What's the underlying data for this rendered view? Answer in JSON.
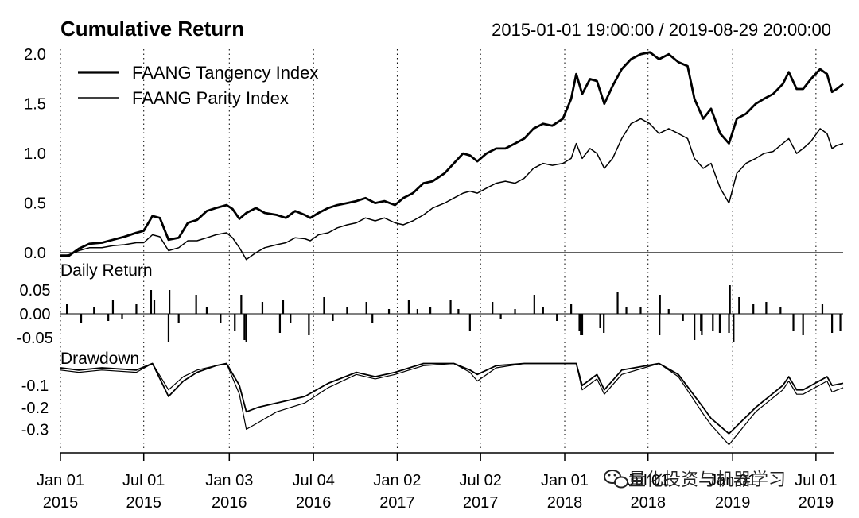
{
  "chart_data": {
    "type": "line",
    "title": "Cumulative Return",
    "date_range": "2015-01-01 19:00:00 / 2019-08-29 20:00:00",
    "x_tick_labels": [
      {
        "top": "Jan 01",
        "bottom": "2015",
        "date": "2015-01-01"
      },
      {
        "top": "Jul 01",
        "bottom": "2015",
        "date": "2015-07-01"
      },
      {
        "top": "Jan 03",
        "bottom": "2016",
        "date": "2016-01-03"
      },
      {
        "top": "Jul 04",
        "bottom": "2016",
        "date": "2016-07-04"
      },
      {
        "top": "Jan 02",
        "bottom": "2017",
        "date": "2017-01-02"
      },
      {
        "top": "Jul 02",
        "bottom": "2017",
        "date": "2017-07-02"
      },
      {
        "top": "Jan 01",
        "bottom": "2018",
        "date": "2018-01-01"
      },
      {
        "top": "Jul 01",
        "bottom": "2018",
        "date": "2018-07-01"
      },
      {
        "top": "Jan 01",
        "bottom": "2019",
        "date": "2019-01-01"
      },
      {
        "top": "Jul 01",
        "bottom": "2019",
        "date": "2019-07-01"
      }
    ],
    "x_range": [
      "2015-01-01",
      "2019-08-29"
    ],
    "legend_position": "top-left",
    "grid": "dotted vertical",
    "panels": {
      "cumulative": {
        "label": "Cumulative Return",
        "ylim": [
          0,
          2.05
        ],
        "y_ticks": [
          "0.0",
          "0.5",
          "1.0",
          "1.5",
          "2.0"
        ],
        "y_tick_values": [
          0,
          0.5,
          1.0,
          1.5,
          2.0
        ]
      },
      "daily": {
        "label": "Daily Return",
        "ylim": [
          -0.075,
          0.075
        ],
        "y_ticks": [
          "0.05",
          "0.00",
          "-0.05"
        ],
        "y_tick_values": [
          0.05,
          0,
          -0.05
        ]
      },
      "drawdown": {
        "label": "Drawdown",
        "ylim": [
          -0.4,
          0.02
        ],
        "y_ticks": [
          "-0.1",
          "-0.2",
          "-0.3"
        ],
        "y_tick_values": [
          -0.1,
          -0.2,
          -0.3
        ]
      }
    },
    "series": [
      {
        "name": "FAANG Tangency Index",
        "line_width": "thick",
        "cumulative_return": {
          "x": [
            "2015-01-01",
            "2015-01-20",
            "2015-02-10",
            "2015-03-05",
            "2015-04-01",
            "2015-04-25",
            "2015-05-20",
            "2015-06-15",
            "2015-07-01",
            "2015-07-20",
            "2015-08-05",
            "2015-08-24",
            "2015-09-15",
            "2015-10-05",
            "2015-10-25",
            "2015-11-15",
            "2015-12-05",
            "2015-12-28",
            "2016-01-10",
            "2016-01-25",
            "2016-02-09",
            "2016-03-01",
            "2016-03-20",
            "2016-04-15",
            "2016-05-05",
            "2016-05-25",
            "2016-06-15",
            "2016-06-27",
            "2016-07-15",
            "2016-08-05",
            "2016-08-25",
            "2016-09-15",
            "2016-10-05",
            "2016-10-25",
            "2016-11-15",
            "2016-12-05",
            "2016-12-28",
            "2017-01-15",
            "2017-02-05",
            "2017-02-28",
            "2017-03-20",
            "2017-04-15",
            "2017-05-05",
            "2017-05-25",
            "2017-06-09",
            "2017-06-25",
            "2017-07-15",
            "2017-08-05",
            "2017-08-25",
            "2017-09-15",
            "2017-10-05",
            "2017-10-25",
            "2017-11-15",
            "2017-12-05",
            "2017-12-28",
            "2018-01-15",
            "2018-01-26",
            "2018-02-08",
            "2018-02-25",
            "2018-03-12",
            "2018-03-28",
            "2018-04-15",
            "2018-05-05",
            "2018-05-25",
            "2018-06-15",
            "2018-07-05",
            "2018-07-25",
            "2018-08-15",
            "2018-09-05",
            "2018-09-25",
            "2018-10-10",
            "2018-10-29",
            "2018-11-15",
            "2018-12-05",
            "2018-12-24",
            "2019-01-10",
            "2019-01-30",
            "2019-02-20",
            "2019-03-10",
            "2019-03-30",
            "2019-04-20",
            "2019-05-03",
            "2019-05-20",
            "2019-06-03",
            "2019-06-20",
            "2019-07-10",
            "2019-07-25",
            "2019-08-05",
            "2019-08-15",
            "2019-08-29"
          ],
          "y": [
            -0.03,
            -0.03,
            0.04,
            0.09,
            0.1,
            0.13,
            0.16,
            0.2,
            0.22,
            0.37,
            0.35,
            0.13,
            0.15,
            0.3,
            0.33,
            0.42,
            0.45,
            0.48,
            0.44,
            0.34,
            0.4,
            0.45,
            0.4,
            0.38,
            0.35,
            0.42,
            0.38,
            0.35,
            0.4,
            0.45,
            0.48,
            0.5,
            0.52,
            0.55,
            0.5,
            0.52,
            0.48,
            0.55,
            0.6,
            0.7,
            0.72,
            0.8,
            0.9,
            1.0,
            0.98,
            0.92,
            1.0,
            1.05,
            1.05,
            1.1,
            1.15,
            1.25,
            1.3,
            1.28,
            1.35,
            1.55,
            1.8,
            1.6,
            1.75,
            1.73,
            1.5,
            1.68,
            1.85,
            1.95,
            2.0,
            2.02,
            1.95,
            2.0,
            1.92,
            1.88,
            1.55,
            1.35,
            1.45,
            1.2,
            1.1,
            1.35,
            1.4,
            1.5,
            1.55,
            1.6,
            1.7,
            1.82,
            1.65,
            1.65,
            1.75,
            1.85,
            1.8,
            1.62,
            1.65,
            1.7
          ]
        },
        "drawdown": {
          "x": [
            "2015-01-01",
            "2015-02-10",
            "2015-04-01",
            "2015-06-15",
            "2015-07-20",
            "2015-08-24",
            "2015-09-25",
            "2015-10-25",
            "2015-12-05",
            "2015-12-28",
            "2016-01-25",
            "2016-02-09",
            "2016-03-05",
            "2016-04-15",
            "2016-06-15",
            "2016-08-05",
            "2016-10-05",
            "2016-11-15",
            "2016-12-28",
            "2017-02-28",
            "2017-05-05",
            "2017-06-09",
            "2017-06-25",
            "2017-08-05",
            "2017-10-05",
            "2017-12-28",
            "2018-01-26",
            "2018-02-08",
            "2018-03-12",
            "2018-03-28",
            "2018-05-05",
            "2018-07-25",
            "2018-09-05",
            "2018-10-29",
            "2018-11-15",
            "2018-12-24",
            "2019-02-20",
            "2019-04-20",
            "2019-05-03",
            "2019-05-20",
            "2019-06-03",
            "2019-07-25",
            "2019-08-05",
            "2019-08-29"
          ],
          "y": [
            -0.02,
            -0.03,
            -0.02,
            -0.03,
            0,
            -0.15,
            -0.08,
            -0.04,
            -0.01,
            0,
            -0.1,
            -0.22,
            -0.2,
            -0.18,
            -0.15,
            -0.09,
            -0.04,
            -0.06,
            -0.04,
            0,
            0,
            -0.03,
            -0.05,
            -0.01,
            0,
            0,
            0,
            -0.1,
            -0.05,
            -0.12,
            -0.03,
            0,
            -0.05,
            -0.2,
            -0.25,
            -0.32,
            -0.2,
            -0.1,
            -0.06,
            -0.12,
            -0.12,
            -0.06,
            -0.1,
            -0.09
          ]
        }
      },
      {
        "name": "FAANG Parity Index",
        "line_width": "thin",
        "cumulative_return": {
          "x": [
            "2015-01-01",
            "2015-01-20",
            "2015-02-10",
            "2015-03-05",
            "2015-04-01",
            "2015-04-25",
            "2015-05-20",
            "2015-06-15",
            "2015-07-01",
            "2015-07-20",
            "2015-08-05",
            "2015-08-24",
            "2015-09-15",
            "2015-10-05",
            "2015-10-25",
            "2015-11-15",
            "2015-12-05",
            "2015-12-28",
            "2016-01-10",
            "2016-01-25",
            "2016-02-09",
            "2016-03-01",
            "2016-03-20",
            "2016-04-15",
            "2016-05-05",
            "2016-05-25",
            "2016-06-15",
            "2016-06-27",
            "2016-07-15",
            "2016-08-05",
            "2016-08-25",
            "2016-09-15",
            "2016-10-05",
            "2016-10-25",
            "2016-11-15",
            "2016-12-05",
            "2016-12-28",
            "2017-01-15",
            "2017-02-05",
            "2017-02-28",
            "2017-03-20",
            "2017-04-15",
            "2017-05-05",
            "2017-05-25",
            "2017-06-09",
            "2017-06-25",
            "2017-07-15",
            "2017-08-05",
            "2017-08-25",
            "2017-09-15",
            "2017-10-05",
            "2017-10-25",
            "2017-11-15",
            "2017-12-05",
            "2017-12-28",
            "2018-01-15",
            "2018-01-26",
            "2018-02-08",
            "2018-02-25",
            "2018-03-12",
            "2018-03-28",
            "2018-04-15",
            "2018-05-05",
            "2018-05-25",
            "2018-06-15",
            "2018-07-05",
            "2018-07-25",
            "2018-08-15",
            "2018-09-05",
            "2018-09-25",
            "2018-10-10",
            "2018-10-29",
            "2018-11-15",
            "2018-12-05",
            "2018-12-24",
            "2019-01-10",
            "2019-01-30",
            "2019-02-20",
            "2019-03-10",
            "2019-03-30",
            "2019-04-20",
            "2019-05-03",
            "2019-05-20",
            "2019-06-03",
            "2019-06-20",
            "2019-07-10",
            "2019-07-25",
            "2019-08-05",
            "2019-08-15",
            "2019-08-29"
          ],
          "y": [
            -0.04,
            -0.02,
            0.02,
            0.05,
            0.05,
            0.07,
            0.08,
            0.1,
            0.1,
            0.18,
            0.16,
            0.02,
            0.05,
            0.12,
            0.12,
            0.15,
            0.18,
            0.2,
            0.15,
            0.05,
            -0.07,
            0.0,
            0.05,
            0.08,
            0.1,
            0.15,
            0.14,
            0.12,
            0.18,
            0.2,
            0.25,
            0.28,
            0.3,
            0.35,
            0.32,
            0.35,
            0.3,
            0.28,
            0.32,
            0.38,
            0.45,
            0.5,
            0.55,
            0.6,
            0.62,
            0.6,
            0.65,
            0.7,
            0.72,
            0.7,
            0.75,
            0.85,
            0.9,
            0.88,
            0.9,
            0.95,
            1.1,
            0.95,
            1.05,
            1.0,
            0.85,
            0.95,
            1.15,
            1.3,
            1.35,
            1.3,
            1.2,
            1.25,
            1.2,
            1.15,
            0.95,
            0.85,
            0.9,
            0.65,
            0.5,
            0.8,
            0.9,
            0.95,
            1.0,
            1.02,
            1.1,
            1.15,
            1.0,
            1.05,
            1.12,
            1.25,
            1.2,
            1.05,
            1.08,
            1.1
          ]
        },
        "drawdown": {
          "x": [
            "2015-01-01",
            "2015-02-10",
            "2015-04-01",
            "2015-06-15",
            "2015-07-20",
            "2015-08-24",
            "2015-09-25",
            "2015-10-25",
            "2015-12-05",
            "2015-12-28",
            "2016-01-25",
            "2016-02-09",
            "2016-03-05",
            "2016-04-15",
            "2016-06-15",
            "2016-08-05",
            "2016-10-05",
            "2016-11-15",
            "2016-12-28",
            "2017-02-28",
            "2017-05-05",
            "2017-06-09",
            "2017-06-25",
            "2017-08-05",
            "2017-10-05",
            "2017-12-28",
            "2018-01-26",
            "2018-02-08",
            "2018-03-12",
            "2018-03-28",
            "2018-05-05",
            "2018-07-25",
            "2018-09-05",
            "2018-10-29",
            "2018-11-15",
            "2018-12-24",
            "2019-02-20",
            "2019-04-20",
            "2019-05-03",
            "2019-05-20",
            "2019-06-03",
            "2019-07-25",
            "2019-08-05",
            "2019-08-29"
          ],
          "y": [
            -0.03,
            -0.04,
            -0.03,
            -0.04,
            0,
            -0.12,
            -0.06,
            -0.03,
            -0.01,
            0,
            -0.14,
            -0.3,
            -0.27,
            -0.22,
            -0.18,
            -0.11,
            -0.05,
            -0.07,
            -0.05,
            -0.01,
            0,
            -0.04,
            -0.08,
            -0.02,
            0,
            0,
            0,
            -0.12,
            -0.07,
            -0.14,
            -0.05,
            0,
            -0.06,
            -0.23,
            -0.28,
            -0.37,
            -0.22,
            -0.12,
            -0.08,
            -0.14,
            -0.14,
            -0.08,
            -0.13,
            -0.11
          ]
        }
      }
    ],
    "daily_return": {
      "x": [
        "2015-01-15",
        "2015-02-15",
        "2015-03-15",
        "2015-04-15",
        "2015-04-25",
        "2015-05-15",
        "2015-06-15",
        "2015-07-17",
        "2015-07-24",
        "2015-08-24",
        "2015-08-26",
        "2015-09-15",
        "2015-10-23",
        "2015-11-15",
        "2015-12-15",
        "2016-01-15",
        "2016-01-29",
        "2016-02-05",
        "2016-02-09",
        "2016-03-15",
        "2016-04-22",
        "2016-04-29",
        "2016-05-15",
        "2016-06-24",
        "2016-07-27",
        "2016-08-15",
        "2016-09-15",
        "2016-10-27",
        "2016-11-09",
        "2016-12-15",
        "2017-01-27",
        "2017-02-15",
        "2017-03-15",
        "2017-04-28",
        "2017-05-15",
        "2017-06-09",
        "2017-07-28",
        "2017-08-15",
        "2017-09-15",
        "2017-10-27",
        "2017-11-15",
        "2017-12-15",
        "2018-01-15",
        "2018-02-02",
        "2018-02-05",
        "2018-02-08",
        "2018-03-19",
        "2018-03-27",
        "2018-04-26",
        "2018-05-15",
        "2018-06-15",
        "2018-07-26",
        "2018-07-27",
        "2018-08-15",
        "2018-09-15",
        "2018-10-10",
        "2018-10-24",
        "2018-10-26",
        "2018-11-19",
        "2018-12-04",
        "2018-12-24",
        "2018-12-26",
        "2019-01-03",
        "2019-01-15",
        "2019-02-15",
        "2019-03-15",
        "2019-04-15",
        "2019-05-13",
        "2019-06-03",
        "2019-07-15",
        "2019-08-05",
        "2019-08-23"
      ],
      "y": [
        0.02,
        -0.02,
        0.015,
        -0.015,
        0.03,
        -0.01,
        0.02,
        0.05,
        0.03,
        -0.06,
        0.05,
        -0.02,
        0.04,
        0.015,
        -0.02,
        -0.035,
        0.04,
        -0.055,
        -0.06,
        0.025,
        -0.04,
        0.03,
        -0.02,
        -0.045,
        0.035,
        -0.015,
        0.015,
        0.025,
        -0.02,
        0.01,
        0.03,
        0.01,
        0.015,
        0.03,
        0.01,
        -0.035,
        0.025,
        -0.01,
        0.01,
        0.04,
        0.015,
        -0.015,
        0.02,
        -0.035,
        -0.045,
        -0.045,
        -0.03,
        -0.04,
        0.045,
        0.015,
        0.015,
        -0.045,
        0.04,
        0.01,
        -0.015,
        -0.055,
        -0.035,
        -0.045,
        -0.035,
        -0.04,
        -0.04,
        0.06,
        -0.06,
        0.035,
        0.02,
        0.025,
        0.015,
        -0.035,
        -0.045,
        0.02,
        -0.04,
        -0.035
      ]
    }
  },
  "watermark": {
    "icon": "wechat-icon",
    "text": "量化投资与机器学习"
  }
}
